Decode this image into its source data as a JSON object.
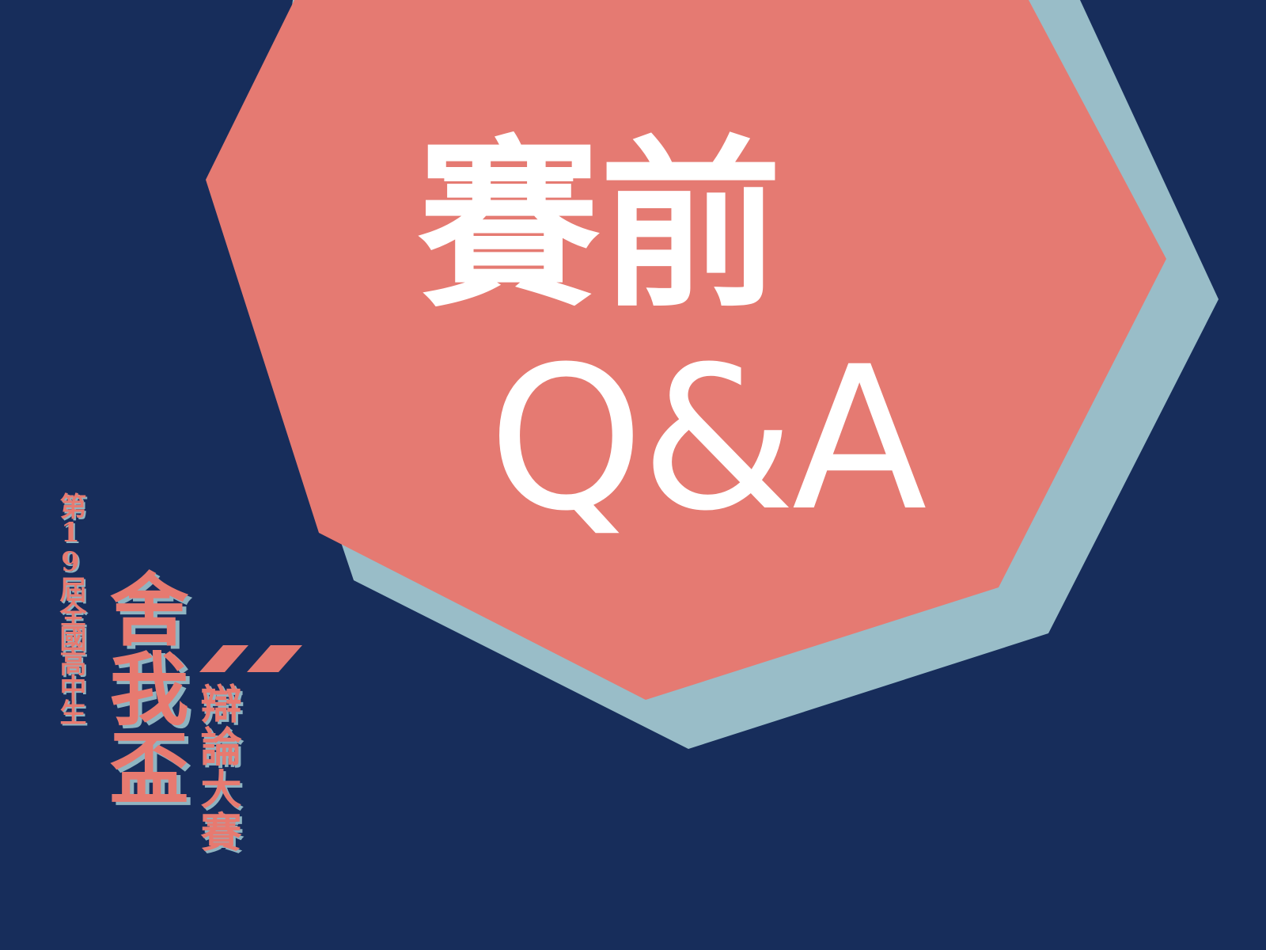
{
  "headline": {
    "line1": "賽前",
    "line2": "Q&A"
  },
  "logo": {
    "edition": "第19屆全國高中生",
    "name": "舍我盃",
    "subtitle": "辯論大賽"
  },
  "colors": {
    "background": "#172d5b",
    "coral": "#e57a72",
    "light_blue": "#99bdc8",
    "text_white": "#ffffff"
  }
}
